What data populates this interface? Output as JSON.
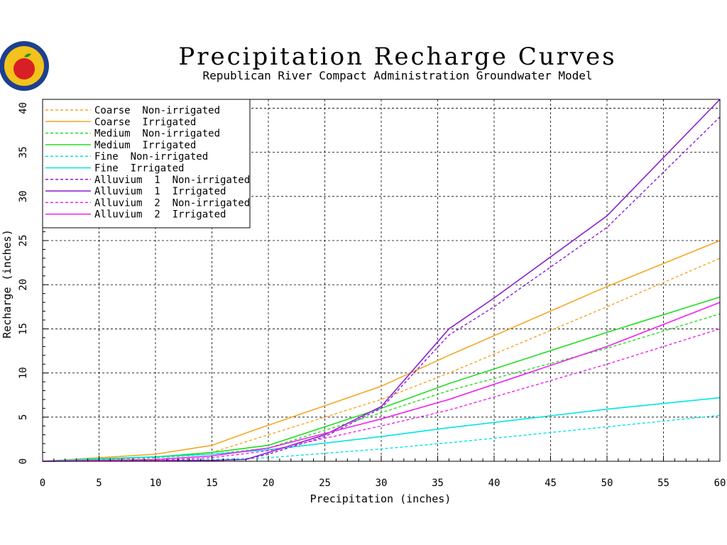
{
  "logo": {
    "name": "Kansas Department of Agriculture seal",
    "colors": {
      "ring": "#1d3f8f",
      "fill": "#f3c21b",
      "apple": "#d81f26",
      "leaf": "#1f8f2a"
    }
  },
  "chart_data": {
    "type": "line",
    "title": "Precipitation  Recharge  Curves",
    "subtitle": "Republican  River  Compact  Administration  Groundwater  Model",
    "xlabel": "Precipitation  (inches)",
    "ylabel": "Recharge  (inches)",
    "xlim": [
      0,
      60
    ],
    "ylim": [
      0,
      41
    ],
    "xticks": [
      0,
      5,
      10,
      15,
      20,
      25,
      30,
      35,
      40,
      45,
      50,
      55,
      60
    ],
    "yticks": [
      0,
      5,
      10,
      15,
      20,
      25,
      30,
      35,
      40
    ],
    "grid": true,
    "legend_position": "top-left",
    "series": [
      {
        "name": "Coarse  Non-irrigated",
        "color": "#f5a623",
        "style": "dashed",
        "x": [
          0,
          10,
          15,
          20,
          30,
          36,
          50,
          60
        ],
        "y": [
          0,
          0.4,
          1.0,
          3.0,
          7.0,
          10.0,
          17.5,
          23.0
        ]
      },
      {
        "name": "Coarse  Irrigated",
        "color": "#f5a623",
        "style": "solid",
        "x": [
          0,
          10,
          15,
          18,
          30,
          36,
          50,
          60
        ],
        "y": [
          0,
          0.8,
          1.8,
          3.2,
          8.5,
          12.0,
          19.8,
          25.0
        ]
      },
      {
        "name": "Medium  Non-irrigated",
        "color": "#22dd22",
        "style": "dashed",
        "x": [
          0,
          10,
          15,
          20,
          30,
          36,
          50,
          60
        ],
        "y": [
          0,
          0.4,
          0.8,
          1.5,
          5.5,
          8.0,
          12.8,
          16.7
        ]
      },
      {
        "name": "Medium  Irrigated",
        "color": "#22dd22",
        "style": "solid",
        "x": [
          0,
          10,
          15,
          20,
          30,
          36,
          50,
          60
        ],
        "y": [
          0,
          0.5,
          1.0,
          1.8,
          6.0,
          8.8,
          14.6,
          18.6
        ]
      },
      {
        "name": "Fine  Non-irrigated",
        "color": "#00e5e5",
        "style": "dashed",
        "x": [
          0,
          10,
          15,
          20,
          30,
          36,
          50,
          60
        ],
        "y": [
          0,
          0.1,
          0.2,
          0.4,
          1.4,
          2.1,
          3.9,
          5.2
        ]
      },
      {
        "name": "Fine  Irrigated",
        "color": "#00e5e5",
        "style": "solid",
        "x": [
          0,
          5,
          10,
          15,
          20,
          30,
          36,
          50,
          60
        ],
        "y": [
          0,
          0.3,
          0.5,
          0.8,
          1.3,
          2.8,
          3.8,
          5.9,
          7.2
        ]
      },
      {
        "name": "Alluvium  1  Non-irrigated",
        "color": "#8a1ed0",
        "style": "dashed",
        "x": [
          0,
          15,
          18,
          20,
          25,
          30,
          36,
          40,
          50,
          60
        ],
        "y": [
          0,
          0.1,
          0.2,
          0.8,
          2.8,
          6.0,
          14.3,
          17.5,
          26.5,
          39.0
        ]
      },
      {
        "name": "Alluvium  1  Irrigated",
        "color": "#8a1ed0",
        "style": "solid",
        "x": [
          0,
          15,
          18,
          20,
          25,
          30,
          36,
          40,
          50,
          60
        ],
        "y": [
          0,
          0.1,
          0.2,
          1.0,
          3.0,
          6.2,
          15.0,
          18.5,
          27.8,
          41.0
        ]
      },
      {
        "name": "Alluvium  2  Non-irrigated",
        "color": "#ee22ee",
        "style": "dashed",
        "x": [
          0,
          10,
          15,
          20,
          30,
          36,
          50,
          60
        ],
        "y": [
          0,
          0.1,
          0.4,
          1.2,
          4.0,
          5.8,
          11.0,
          15.0
        ]
      },
      {
        "name": "Alluvium  2  Irrigated",
        "color": "#ee22ee",
        "style": "solid",
        "x": [
          0,
          10,
          15,
          20,
          30,
          36,
          50,
          60
        ],
        "y": [
          0,
          0.2,
          0.6,
          1.5,
          4.8,
          7.0,
          13.0,
          18.0
        ]
      }
    ]
  }
}
